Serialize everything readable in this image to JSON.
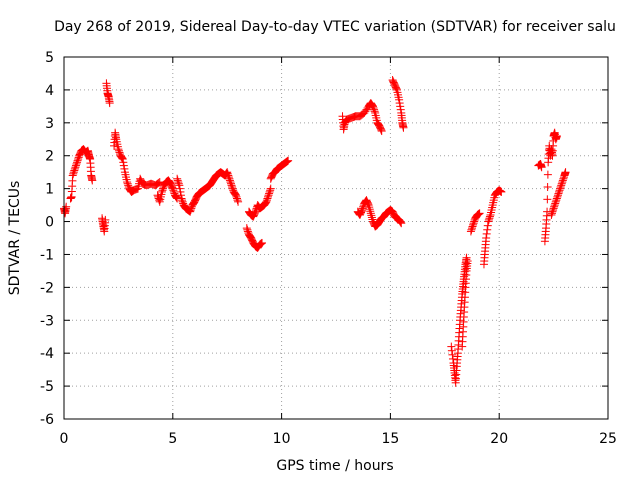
{
  "chart_data": {
    "type": "scatter",
    "title": "Day 268 of 2019, Sidereal Day-to-day VTEC variation (SDTVAR) for receiver salu",
    "xlabel": "GPS time / hours",
    "ylabel": "SDTVAR / TECUs",
    "xlim": [
      0,
      25
    ],
    "ylim": [
      -6,
      5
    ],
    "xticks": [
      0,
      5,
      10,
      15,
      20,
      25
    ],
    "yticks": [
      -6,
      -5,
      -4,
      -3,
      -2,
      -1,
      0,
      1,
      2,
      3,
      4,
      5
    ],
    "grid": true,
    "marker": "+",
    "color": "#ff0000",
    "series": [
      {
        "name": "SDTVAR",
        "segments": [
          [
            [
              0.0,
              0.4
            ],
            [
              0.05,
              0.25
            ],
            [
              0.1,
              0.45
            ]
          ],
          [
            [
              0.3,
              0.7
            ],
            [
              0.35,
              0.75
            ],
            [
              0.4,
              1.4
            ],
            [
              0.5,
              1.6
            ],
            [
              0.6,
              1.8
            ],
            [
              0.7,
              2.0
            ],
            [
              0.8,
              2.15
            ],
            [
              0.9,
              2.2
            ],
            [
              1.0,
              2.1
            ],
            [
              1.1,
              2.15
            ],
            [
              1.15,
              2.0
            ],
            [
              1.2,
              1.9
            ],
            [
              1.25,
              1.4
            ],
            [
              1.3,
              1.25
            ]
          ],
          [
            [
              1.75,
              0.1
            ],
            [
              1.8,
              -0.1
            ],
            [
              1.85,
              -0.3
            ],
            [
              1.9,
              0.05
            ]
          ],
          [
            [
              1.95,
              4.2
            ],
            [
              2.0,
              3.9
            ],
            [
              2.05,
              3.8
            ],
            [
              2.1,
              3.6
            ]
          ],
          [
            [
              2.3,
              2.3
            ],
            [
              2.35,
              2.7
            ],
            [
              2.4,
              2.5
            ],
            [
              2.5,
              2.2
            ],
            [
              2.6,
              2.0
            ],
            [
              2.7,
              1.9
            ],
            [
              2.8,
              1.5
            ],
            [
              2.9,
              1.2
            ],
            [
              3.0,
              1.0
            ],
            [
              3.1,
              0.9
            ],
            [
              3.2,
              0.95
            ],
            [
              3.4,
              1.0
            ],
            [
              3.5,
              1.3
            ],
            [
              3.6,
              1.15
            ],
            [
              3.8,
              1.1
            ],
            [
              4.0,
              1.15
            ],
            [
              4.2,
              1.1
            ],
            [
              4.4,
              1.2
            ]
          ],
          [
            [
              4.3,
              0.8
            ],
            [
              4.4,
              0.6
            ],
            [
              4.5,
              0.9
            ],
            [
              4.6,
              1.1
            ],
            [
              4.7,
              1.2
            ],
            [
              4.8,
              1.25
            ],
            [
              4.9,
              1.15
            ],
            [
              5.0,
              1.0
            ],
            [
              5.1,
              0.8
            ],
            [
              5.2,
              0.7
            ]
          ],
          [
            [
              5.2,
              1.3
            ],
            [
              5.3,
              1.1
            ],
            [
              5.4,
              0.7
            ],
            [
              5.5,
              0.5
            ],
            [
              5.6,
              0.4
            ],
            [
              5.7,
              0.35
            ],
            [
              5.8,
              0.3
            ],
            [
              5.9,
              0.5
            ],
            [
              6.0,
              0.6
            ],
            [
              6.1,
              0.75
            ],
            [
              6.2,
              0.85
            ],
            [
              6.3,
              0.9
            ],
            [
              6.4,
              0.95
            ],
            [
              6.5,
              1.0
            ],
            [
              6.6,
              1.05
            ],
            [
              6.7,
              1.1
            ],
            [
              6.8,
              1.2
            ],
            [
              6.9,
              1.3
            ],
            [
              7.0,
              1.4
            ],
            [
              7.1,
              1.45
            ],
            [
              7.2,
              1.5
            ],
            [
              7.3,
              1.45
            ],
            [
              7.4,
              1.4
            ],
            [
              7.5,
              1.5
            ],
            [
              7.6,
              1.3
            ],
            [
              7.7,
              1.1
            ],
            [
              7.8,
              0.9
            ],
            [
              7.9,
              0.8
            ],
            [
              8.0,
              0.6
            ]
          ],
          [
            [
              8.4,
              -0.2
            ],
            [
              8.5,
              -0.4
            ],
            [
              8.6,
              -0.5
            ],
            [
              8.7,
              -0.65
            ],
            [
              8.8,
              -0.75
            ],
            [
              8.9,
              -0.8
            ],
            [
              9.0,
              -0.7
            ],
            [
              9.1,
              -0.65
            ]
          ],
          [
            [
              8.5,
              0.3
            ],
            [
              8.6,
              0.2
            ],
            [
              8.7,
              0.15
            ],
            [
              8.8,
              0.3
            ],
            [
              8.9,
              0.5
            ],
            [
              9.0,
              0.4
            ],
            [
              9.1,
              0.45
            ],
            [
              9.2,
              0.5
            ],
            [
              9.3,
              0.6
            ],
            [
              9.4,
              0.8
            ],
            [
              9.5,
              1.0
            ]
          ],
          [
            [
              9.5,
              1.3
            ],
            [
              9.6,
              1.45
            ],
            [
              9.7,
              1.5
            ],
            [
              9.8,
              1.6
            ],
            [
              9.9,
              1.65
            ],
            [
              10.0,
              1.7
            ],
            [
              10.1,
              1.75
            ],
            [
              10.2,
              1.8
            ],
            [
              10.3,
              1.85
            ]
          ],
          [
            [
              12.8,
              3.2
            ],
            [
              12.85,
              2.8
            ],
            [
              12.9,
              3.0
            ],
            [
              13.0,
              3.1
            ],
            [
              13.2,
              3.15
            ],
            [
              13.4,
              3.2
            ],
            [
              13.6,
              3.2
            ],
            [
              13.8,
              3.3
            ],
            [
              14.0,
              3.5
            ],
            [
              14.1,
              3.6
            ],
            [
              14.2,
              3.5
            ],
            [
              14.3,
              3.3
            ],
            [
              14.4,
              3.0
            ],
            [
              14.5,
              2.9
            ],
            [
              14.6,
              2.75
            ]
          ],
          [
            [
              13.5,
              0.3
            ],
            [
              13.6,
              0.2
            ],
            [
              13.7,
              0.35
            ],
            [
              13.8,
              0.55
            ],
            [
              13.9,
              0.65
            ],
            [
              14.0,
              0.5
            ],
            [
              14.1,
              0.25
            ],
            [
              14.2,
              0.0
            ],
            [
              14.3,
              -0.15
            ],
            [
              14.4,
              -0.1
            ],
            [
              14.5,
              0.0
            ],
            [
              14.6,
              0.1
            ],
            [
              14.7,
              0.15
            ],
            [
              14.8,
              0.25
            ],
            [
              14.9,
              0.3
            ],
            [
              15.0,
              0.35
            ],
            [
              15.1,
              0.3
            ],
            [
              15.2,
              0.15
            ],
            [
              15.3,
              0.1
            ],
            [
              15.4,
              0.05
            ],
            [
              15.5,
              -0.05
            ]
          ],
          [
            [
              15.1,
              4.3
            ],
            [
              15.2,
              4.15
            ],
            [
              15.3,
              4.0
            ],
            [
              15.4,
              3.7
            ],
            [
              15.5,
              3.3
            ],
            [
              15.55,
              3.0
            ],
            [
              15.6,
              2.85
            ]
          ],
          [
            [
              17.8,
              -3.8
            ],
            [
              17.9,
              -4.3
            ],
            [
              17.95,
              -4.6
            ],
            [
              18.0,
              -4.9
            ],
            [
              18.05,
              -4.4
            ],
            [
              18.1,
              -4.0
            ],
            [
              18.15,
              -3.5
            ],
            [
              18.2,
              -3.0
            ],
            [
              18.25,
              -2.6
            ],
            [
              18.3,
              -2.2
            ],
            [
              18.35,
              -1.9
            ],
            [
              18.4,
              -1.6
            ],
            [
              18.45,
              -1.3
            ],
            [
              18.5,
              -1.1
            ]
          ],
          [
            [
              18.3,
              -3.8
            ],
            [
              18.35,
              -3.2
            ],
            [
              18.4,
              -2.6
            ],
            [
              18.45,
              -2.0
            ],
            [
              18.5,
              -1.5
            ],
            [
              18.55,
              -1.2
            ]
          ],
          [
            [
              18.7,
              -0.3
            ],
            [
              18.8,
              -0.1
            ],
            [
              18.9,
              0.1
            ],
            [
              19.0,
              0.2
            ],
            [
              19.1,
              0.25
            ]
          ],
          [
            [
              19.3,
              -1.3
            ],
            [
              19.35,
              -0.9
            ],
            [
              19.4,
              -0.5
            ],
            [
              19.5,
              0.0
            ],
            [
              19.6,
              0.2
            ],
            [
              19.7,
              0.5
            ],
            [
              19.8,
              0.8
            ],
            [
              19.9,
              0.9
            ],
            [
              20.0,
              0.95
            ],
            [
              20.1,
              0.9
            ]
          ],
          [
            [
              21.8,
              1.7
            ],
            [
              21.9,
              1.75
            ],
            [
              21.95,
              1.65
            ]
          ],
          [
            [
              22.1,
              -0.6
            ],
            [
              22.15,
              -0.2
            ],
            [
              22.2,
              0.3
            ],
            [
              22.25,
              1.8
            ],
            [
              22.3,
              2.3
            ],
            [
              22.35,
              2.0
            ],
            [
              22.4,
              2.2
            ],
            [
              22.45,
              2.0
            ],
            [
              22.5,
              2.6
            ],
            [
              22.55,
              2.7
            ],
            [
              22.6,
              2.5
            ],
            [
              22.65,
              2.6
            ]
          ],
          [
            [
              22.4,
              0.2
            ],
            [
              22.5,
              0.4
            ],
            [
              22.6,
              0.6
            ],
            [
              22.7,
              0.8
            ],
            [
              22.8,
              1.0
            ],
            [
              22.9,
              1.2
            ],
            [
              23.0,
              1.4
            ],
            [
              23.05,
              1.5
            ]
          ]
        ]
      }
    ]
  }
}
